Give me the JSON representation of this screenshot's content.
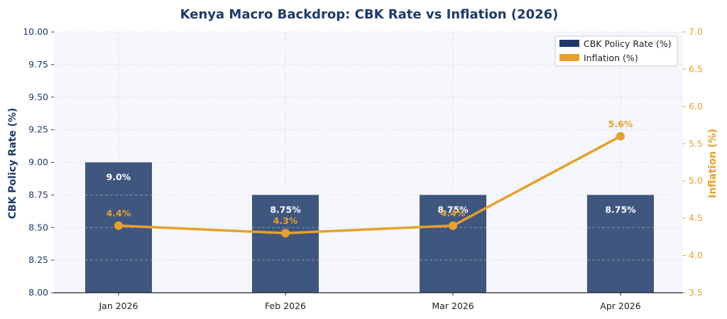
{
  "chart_data": {
    "type": "bar+line",
    "title": "Kenya Macro Backdrop: CBK Rate vs Inflation (2026)",
    "categories": [
      "Jan 2026",
      "Feb 2026",
      "Mar 2026",
      "Apr 2026"
    ],
    "series": [
      {
        "name": "CBK Policy Rate (%)",
        "type": "bar",
        "axis": "left",
        "values": [
          9.0,
          8.75,
          8.75,
          8.75
        ],
        "labels": [
          "9.0%",
          "8.75%",
          "8.75%",
          "8.75%"
        ],
        "color": "#1f3a68"
      },
      {
        "name": "Inflation (%)",
        "type": "line",
        "axis": "right",
        "values": [
          4.4,
          4.3,
          4.4,
          5.6
        ],
        "labels": [
          "4.4%",
          "4.3%",
          "4.4%",
          "5.6%"
        ],
        "color": "#e8a02a"
      }
    ],
    "y_left": {
      "label": "CBK Policy Rate (%)",
      "lim": [
        8.0,
        10.0
      ],
      "ticks": [
        "8.00",
        "8.25",
        "8.50",
        "8.75",
        "9.00",
        "9.25",
        "9.50",
        "9.75",
        "10.00"
      ],
      "color": "#1f3a68"
    },
    "y_right": {
      "label": "Inflation (%)",
      "lim": [
        3.5,
        7.0
      ],
      "ticks": [
        "3.5",
        "4.0",
        "4.5",
        "5.0",
        "5.5",
        "6.0",
        "6.5",
        "7.0"
      ],
      "color": "#e8a02a"
    },
    "grid": true,
    "legend_position": "top-right"
  }
}
